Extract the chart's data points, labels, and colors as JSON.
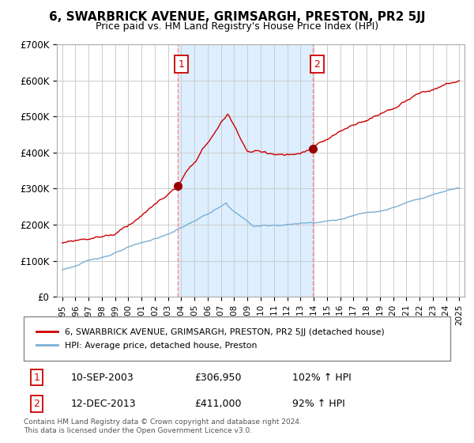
{
  "title": "6, SWARBRICK AVENUE, GRIMSARGH, PRESTON, PR2 5JJ",
  "subtitle": "Price paid vs. HM Land Registry's House Price Index (HPI)",
  "ylim": [
    0,
    700000
  ],
  "yticks": [
    0,
    100000,
    200000,
    300000,
    400000,
    500000,
    600000,
    700000
  ],
  "ytick_labels": [
    "£0",
    "£100K",
    "£200K",
    "£300K",
    "£400K",
    "£500K",
    "£600K",
    "£700K"
  ],
  "xlim": [
    1994.6,
    2025.4
  ],
  "purchase1_year": 2003.71,
  "purchase1_price": 306950,
  "purchase2_year": 2013.95,
  "purchase2_price": 411000,
  "legend_line1": "6, SWARBRICK AVENUE, GRIMSARGH, PRESTON, PR2 5JJ (detached house)",
  "legend_line2": "HPI: Average price, detached house, Preston",
  "purchase1_date": "10-SEP-2003",
  "purchase1_amount": "£306,950",
  "purchase1_hpi": "102% ↑ HPI",
  "purchase2_date": "12-DEC-2013",
  "purchase2_amount": "£411,000",
  "purchase2_hpi": "92% ↑ HPI",
  "footnote": "Contains HM Land Registry data © Crown copyright and database right 2024.\nThis data is licensed under the Open Government Licence v3.0.",
  "house_color": "#cc0000",
  "hpi_color": "#7aafd4",
  "shade_color": "#ddeeff",
  "vline_color": "#ff8888",
  "marker_color": "#990000",
  "box_edge_color": "#cc0000"
}
